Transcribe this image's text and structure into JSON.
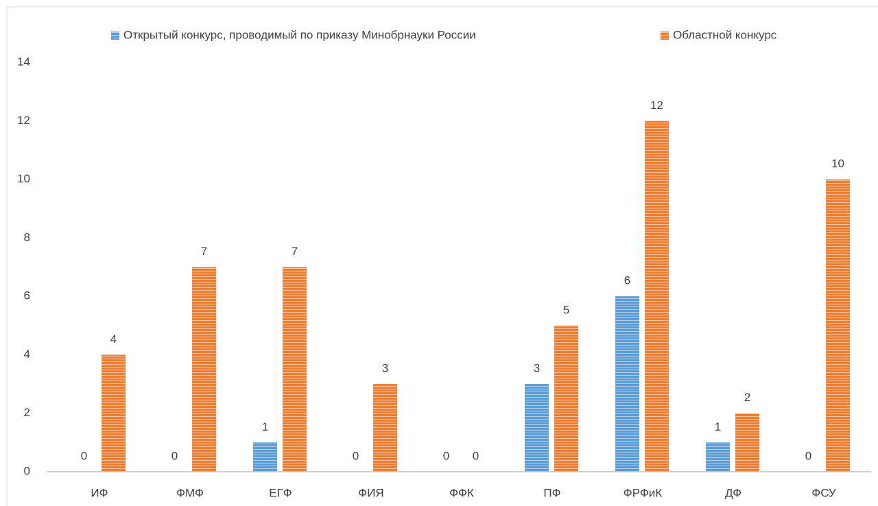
{
  "chart_data": {
    "type": "bar",
    "categories": [
      "ИФ",
      "ФМФ",
      "ЕГФ",
      "ФИЯ",
      "ФФК",
      "ПФ",
      "ФРФиК",
      "ДФ",
      "ФСУ"
    ],
    "series": [
      {
        "name": "Открытый конкурс, проводимый по приказу Минобрнауки России",
        "color": "#5b9bd5",
        "values": [
          0,
          0,
          1,
          0,
          0,
          3,
          6,
          1,
          0
        ]
      },
      {
        "name": "Областной конкурс",
        "color": "#ed7d31",
        "values": [
          4,
          7,
          7,
          3,
          0,
          5,
          12,
          2,
          10
        ]
      }
    ],
    "ylim": [
      0,
      14
    ],
    "yticks": [
      0,
      2,
      4,
      6,
      8,
      10,
      12,
      14
    ],
    "grid": false,
    "legend": "top",
    "data_labels": true
  }
}
